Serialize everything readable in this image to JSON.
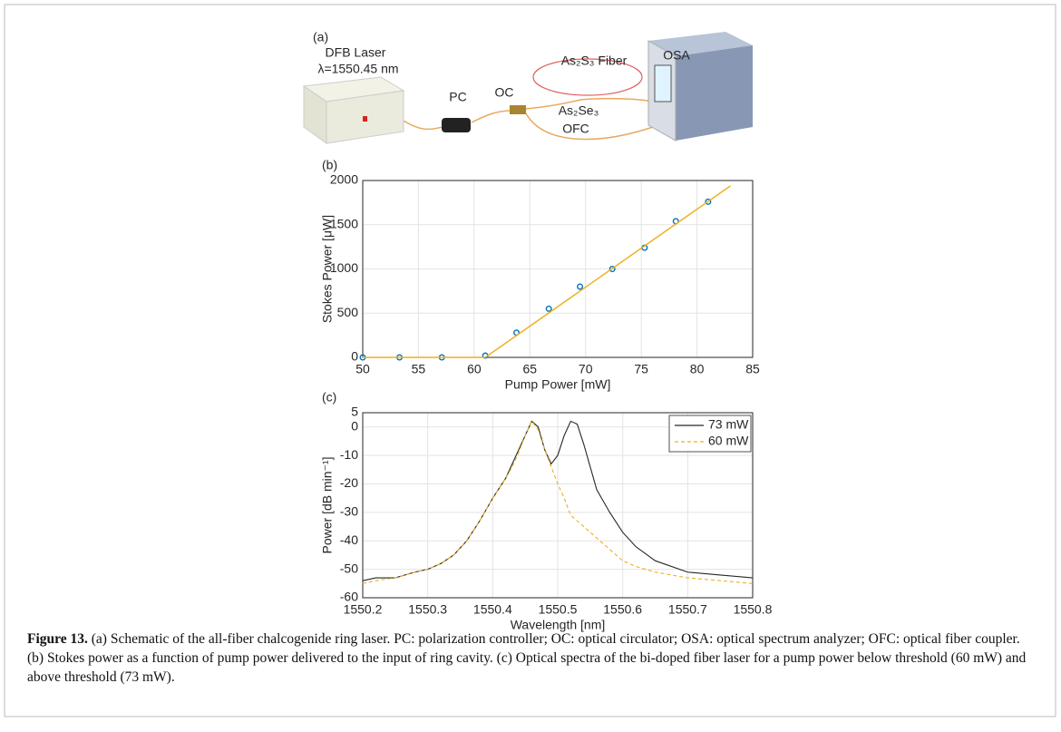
{
  "schematic": {
    "panel_label": "(a)",
    "laser": "DFB Laser",
    "wavelength": "λ=1550.45 nm",
    "pc": "PC",
    "oc": "OC",
    "fiber": "As₂S₃ Fiber",
    "osa": "OSA",
    "coupler_material": "As₂Se₃",
    "ofc": "OFC"
  },
  "chart_data": [
    {
      "type": "scatter",
      "panel_label": "(b)",
      "xlabel": "Pump Power [mW]",
      "ylabel": "Stokes Power [μW]",
      "xlim": [
        50,
        85
      ],
      "xticks": [
        50,
        55,
        60,
        65,
        70,
        75,
        80,
        85
      ],
      "ylim": [
        0,
        2000
      ],
      "yticks": [
        0,
        500,
        1000,
        1500,
        2000
      ],
      "grid": true,
      "series": [
        {
          "style": "markers",
          "color": "#0072bd",
          "x": [
            50,
            53.3,
            57.1,
            61,
            63.8,
            66.7,
            69.5,
            72.4,
            75.3,
            78.1,
            81
          ],
          "values": [
            0,
            0,
            0,
            20,
            280,
            550,
            800,
            1000,
            1240,
            1540,
            1760
          ]
        },
        {
          "style": "line",
          "color": "#edb120",
          "x": [
            50,
            61,
            83
          ],
          "values": [
            0,
            0,
            1940
          ]
        }
      ]
    },
    {
      "type": "line",
      "panel_label": "(c)",
      "xlabel": "Wavelength [nm]",
      "ylabel": "Power [dB min⁻¹]",
      "xlim": [
        1550.2,
        1550.8
      ],
      "xticks": [
        1550.2,
        1550.3,
        1550.4,
        1550.5,
        1550.6,
        1550.7,
        1550.8
      ],
      "ylim": [
        -60,
        5
      ],
      "yticks": [
        5,
        0,
        -10,
        -20,
        -30,
        -40,
        -50,
        -60
      ],
      "grid": true,
      "legend": "northeast",
      "x": [
        1550.2,
        1550.22,
        1550.25,
        1550.28,
        1550.3,
        1550.32,
        1550.34,
        1550.36,
        1550.38,
        1550.4,
        1550.42,
        1550.43,
        1550.44,
        1550.45,
        1550.46,
        1550.47,
        1550.48,
        1550.49,
        1550.5,
        1550.51,
        1550.52,
        1550.53,
        1550.54,
        1550.55,
        1550.56,
        1550.58,
        1550.6,
        1550.62,
        1550.65,
        1550.7,
        1550.75,
        1550.8
      ],
      "series": [
        {
          "name": "73 mW",
          "color": "#262626",
          "dash": false,
          "values": [
            -54,
            -53,
            -53,
            -51,
            -50,
            -48,
            -45,
            -40,
            -33,
            -25,
            -18,
            -13,
            -8,
            -3,
            2,
            0,
            -8,
            -13,
            -10,
            -3,
            2,
            1,
            -6,
            -14,
            -22,
            -30,
            -37,
            -42,
            -47,
            -51,
            -52,
            -53
          ]
        },
        {
          "name": "60 mW",
          "color": "#edb120",
          "dash": true,
          "values": [
            -55,
            -54,
            -53,
            -51,
            -50,
            -48,
            -45,
            -40,
            -33,
            -25,
            -18,
            -14,
            -9,
            -3,
            2,
            -1,
            -8,
            -14,
            -20,
            -25,
            -31,
            -33,
            -35,
            -37,
            -39,
            -43,
            -47,
            -49,
            -51,
            -53,
            -54,
            -55
          ]
        }
      ]
    }
  ],
  "caption": {
    "label": "Figure 13.",
    "text": "(a) Schematic of the all-fiber chalcogenide ring laser. PC: polarization controller; OC: optical circulator; OSA: optical spectrum analyzer; OFC: optical fiber coupler. (b) Stokes power as a function of pump power delivered to the input of ring cavity. (c) Optical spectra of the bi-doped fiber laser for a pump power below threshold (60 mW) and above threshold (73 mW)."
  }
}
